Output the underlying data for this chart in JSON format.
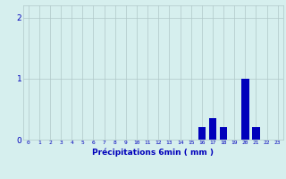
{
  "hours": [
    0,
    1,
    2,
    3,
    4,
    5,
    6,
    7,
    8,
    9,
    10,
    11,
    12,
    13,
    14,
    15,
    16,
    17,
    18,
    19,
    20,
    21,
    22,
    23
  ],
  "values": [
    0,
    0,
    0,
    0,
    0,
    0,
    0,
    0,
    0,
    0,
    0,
    0,
    0,
    0,
    0,
    0,
    0.2,
    0.35,
    0.2,
    0,
    1.0,
    0.2,
    0,
    0
  ],
  "bar_color": "#0000bb",
  "background_color": "#d6efee",
  "grid_color": "#b0c8c8",
  "xlabel": "Précipitations 6min ( mm )",
  "xlabel_color": "#0000bb",
  "tick_color": "#0000bb",
  "ylim": [
    0,
    2.2
  ],
  "yticks": [
    0,
    1,
    2
  ],
  "xlim": [
    -0.5,
    23.5
  ],
  "bar_width": 0.7
}
